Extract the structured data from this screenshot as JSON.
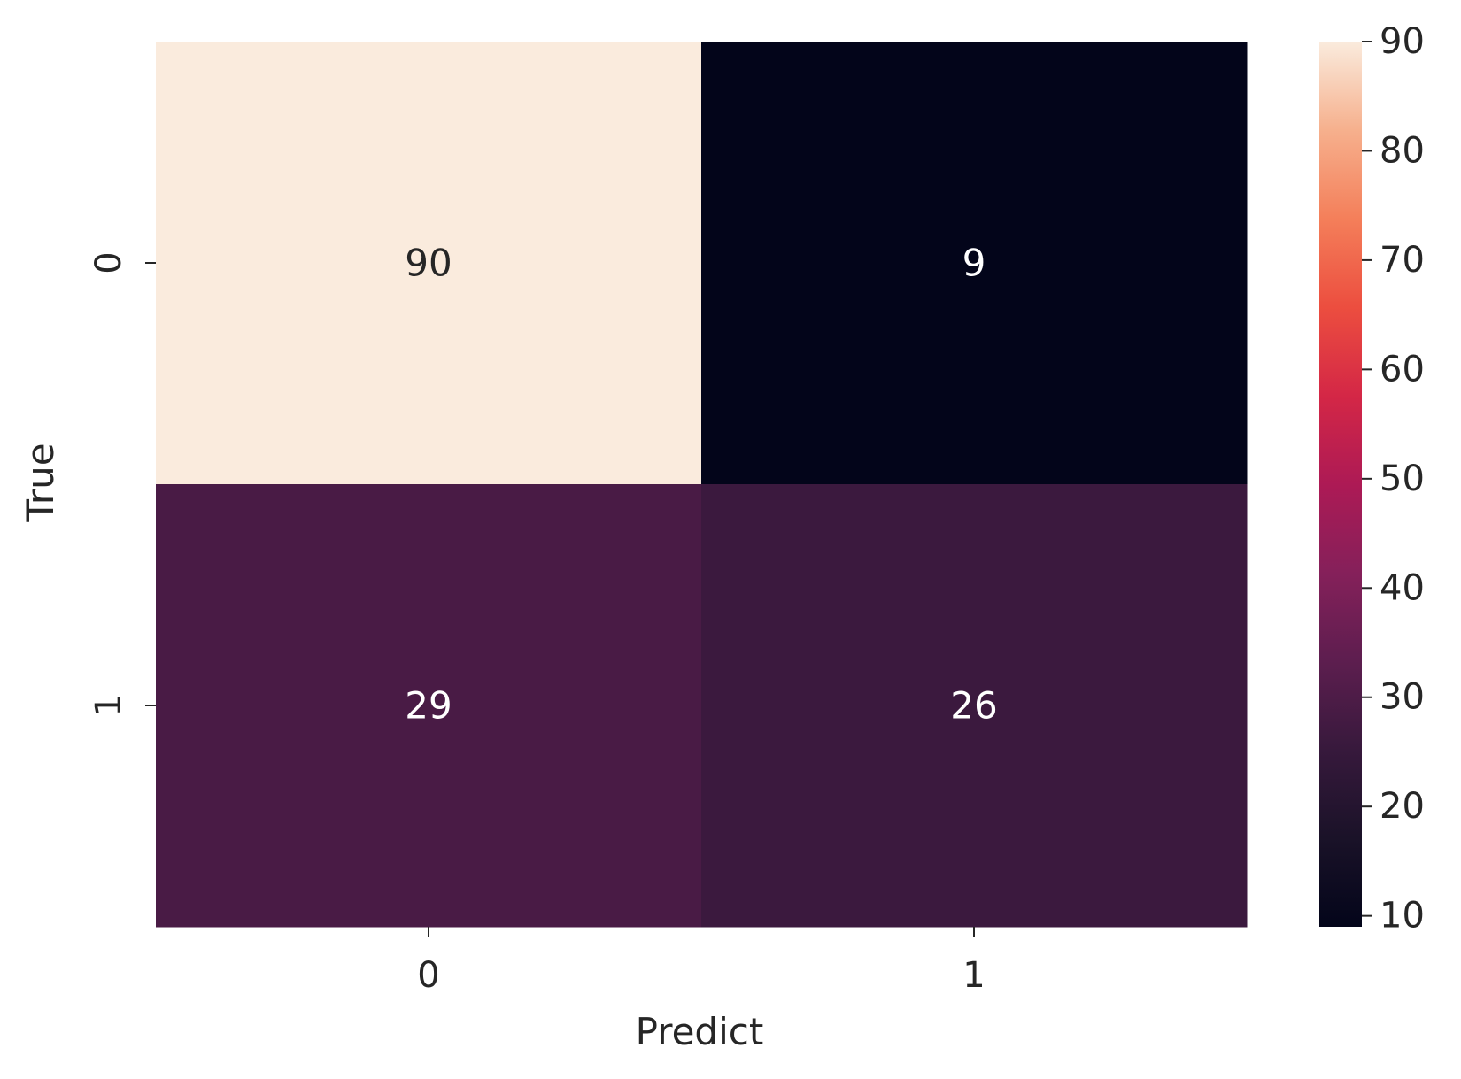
{
  "chart_data": {
    "type": "heatmap",
    "title": "",
    "xlabel": "Predict",
    "ylabel": "True",
    "x_categories": [
      "0",
      "1"
    ],
    "y_categories": [
      "0",
      "1"
    ],
    "values": [
      [
        90,
        9
      ],
      [
        29,
        26
      ]
    ],
    "colorbar": {
      "min": 9,
      "max": 90,
      "ticks": [
        "10",
        "20",
        "30",
        "40",
        "50",
        "60",
        "70",
        "80",
        "90"
      ]
    },
    "colormap": "rocket",
    "colors": {
      "annotation_light": "#262626",
      "annotation_dark": "#ffffff"
    }
  }
}
